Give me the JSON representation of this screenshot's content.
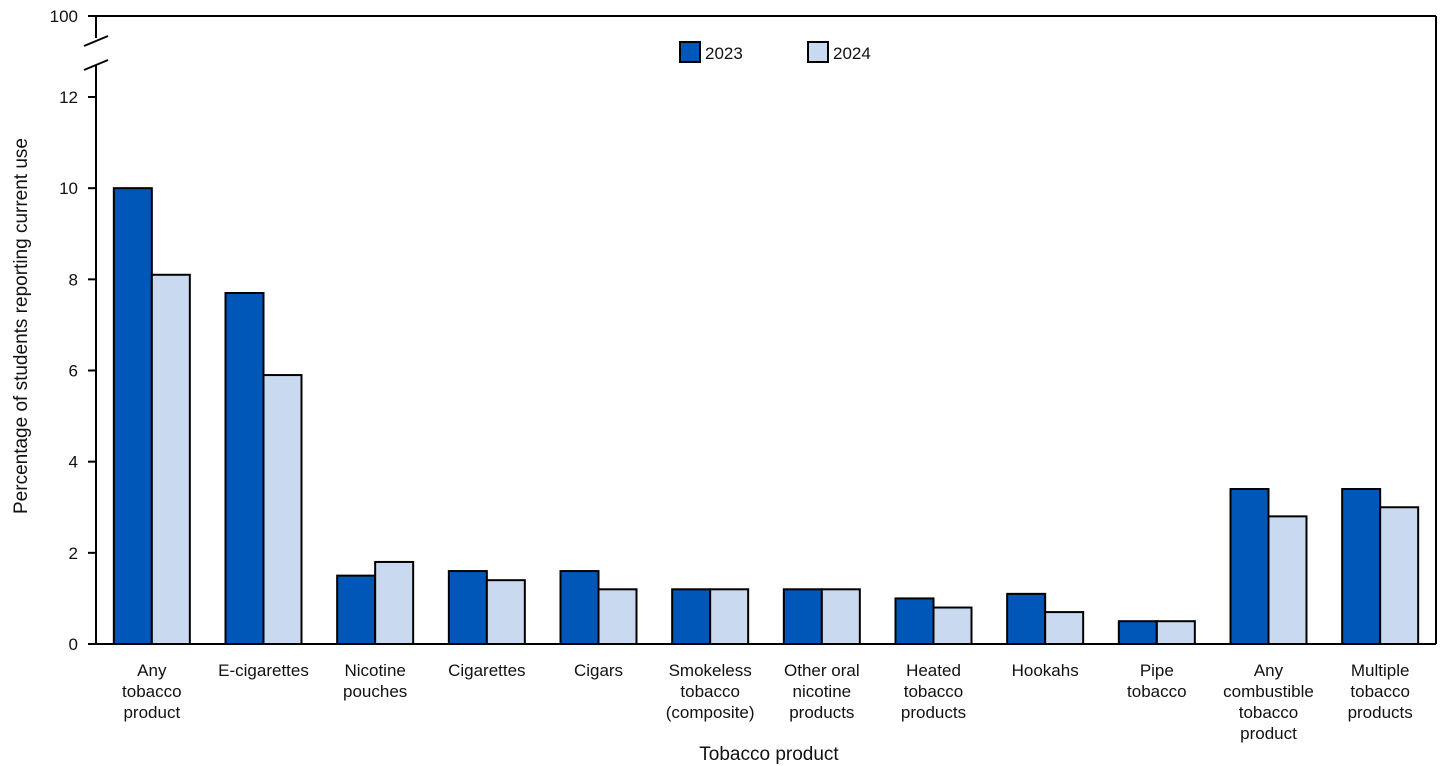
{
  "chart_data": {
    "type": "bar",
    "title": "",
    "xlabel": "Tobacco product",
    "ylabel": "Percentage of students reporting current use",
    "ylim": [
      0,
      12
    ],
    "y_ticks": [
      "0",
      "2",
      "4",
      "6",
      "8",
      "10",
      "12"
    ],
    "y_break_top_label": "100",
    "grid": false,
    "legend_placement": "top-center",
    "categories": [
      [
        "Any",
        "tobacco",
        "product"
      ],
      [
        "E-cigarettes"
      ],
      [
        "Nicotine",
        "pouches"
      ],
      [
        "Cigarettes"
      ],
      [
        "Cigars"
      ],
      [
        "Smokeless",
        "tobacco",
        "(composite)"
      ],
      [
        "Other oral",
        "nicotine",
        "products"
      ],
      [
        "Heated",
        "tobacco",
        "products"
      ],
      [
        "Hookahs"
      ],
      [
        "Pipe",
        "tobacco"
      ],
      [
        "Any",
        "combustible",
        "tobacco",
        "product"
      ],
      [
        "Multiple",
        "tobacco",
        "products"
      ]
    ],
    "series": [
      {
        "name": "2023",
        "color": "#0057b8",
        "values": [
          10.0,
          7.7,
          1.5,
          1.6,
          1.6,
          1.2,
          1.2,
          1.0,
          1.1,
          0.5,
          3.4,
          3.4
        ]
      },
      {
        "name": "2024",
        "color": "#c9daf0",
        "values": [
          8.1,
          5.9,
          1.8,
          1.4,
          1.2,
          1.2,
          1.2,
          0.8,
          0.7,
          0.5,
          2.8,
          3.0
        ]
      }
    ]
  }
}
